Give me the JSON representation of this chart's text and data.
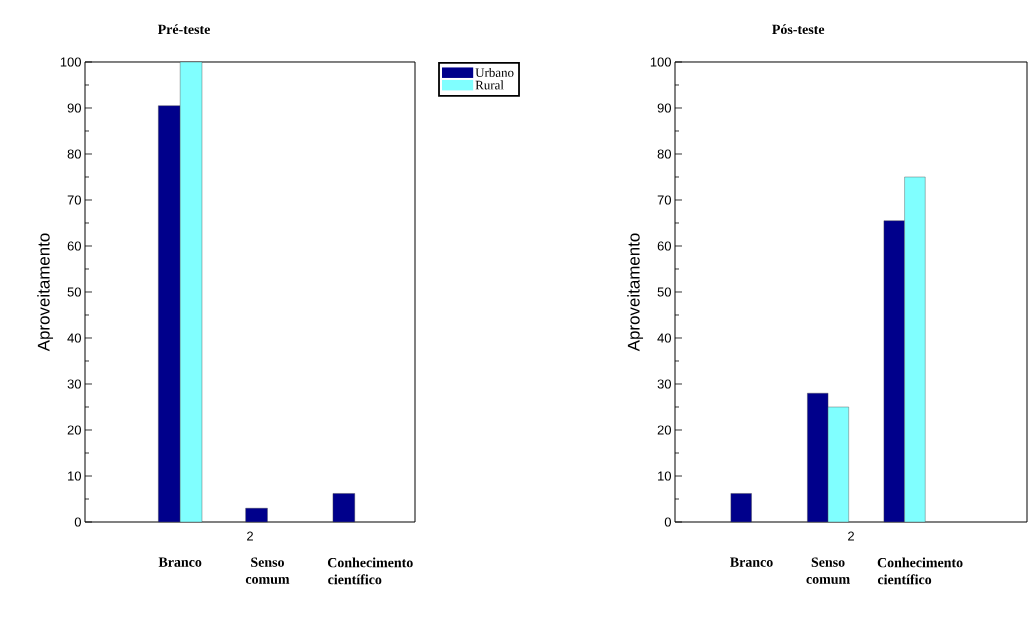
{
  "chart_data": [
    {
      "type": "bar",
      "title": "Pré-teste",
      "ylabel": "Aproveitamento",
      "categories": [
        "Branco",
        "Senso comum",
        "Conhecimento científico"
      ],
      "series": [
        {
          "name": "Urbano",
          "color": "#00008b",
          "values": [
            90.5,
            3,
            6.2
          ]
        },
        {
          "name": "Rural",
          "color": "#80ffff",
          "values": [
            100,
            null,
            null
          ]
        }
      ],
      "ylim": [
        0,
        100
      ],
      "yticks": [
        0,
        10,
        20,
        30,
        40,
        50,
        60,
        70,
        80,
        90,
        100
      ],
      "legend": "top right",
      "annotations": [
        "2"
      ]
    },
    {
      "type": "bar",
      "title": "Pós-teste",
      "ylabel": "Aproveitamento",
      "categories": [
        "Branco",
        "Senso comum",
        "Conhecimento científico"
      ],
      "series": [
        {
          "color": "#00008b",
          "values": [
            6.2,
            28,
            65.5
          ]
        },
        {
          "color": "#80ffff",
          "values": [
            null,
            25,
            75
          ]
        }
      ],
      "ylim": [
        0,
        100
      ],
      "yticks": [
        0,
        10,
        20,
        30,
        40,
        50,
        60,
        70,
        80,
        90,
        100
      ],
      "annotations": [
        "2"
      ]
    }
  ]
}
